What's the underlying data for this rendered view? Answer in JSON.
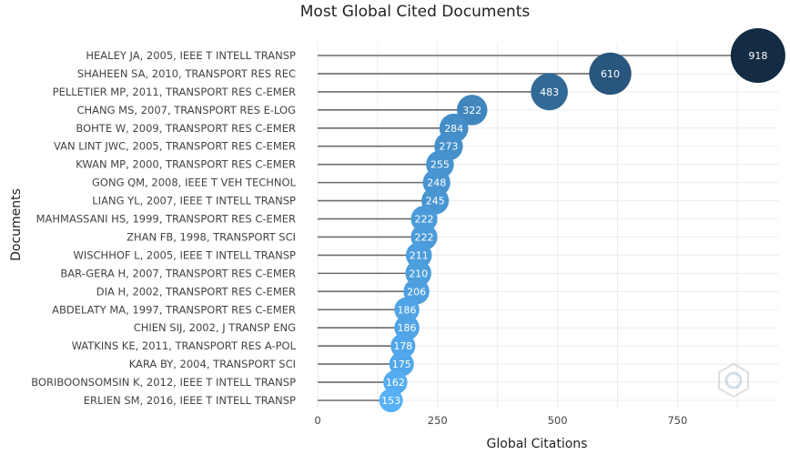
{
  "chart_data": {
    "type": "lollipop",
    "title": "Most Global Cited Documents",
    "xlabel": "Global Citations",
    "ylabel": "Documents",
    "xlim": [
      0,
      960
    ],
    "xticks": [
      0,
      250,
      500,
      750
    ],
    "grid": true,
    "categories": [
      "HEALEY JA, 2005, IEEE T INTELL TRANSP",
      "SHAHEEN SA, 2010, TRANSPORT RES REC",
      "PELLETIER MP, 2011, TRANSPORT RES C-EMER",
      "CHANG MS, 2007, TRANSPORT RES E-LOG",
      "BOHTE W, 2009, TRANSPORT RES C-EMER",
      "VAN LINT JWC, 2005, TRANSPORT RES C-EMER",
      "KWAN MP, 2000, TRANSPORT RES C-EMER",
      "GONG QM, 2008, IEEE T VEH TECHNOL",
      "LIANG YL, 2007, IEEE T INTELL TRANSP",
      "MAHMASSANI HS, 1999, TRANSPORT RES C-EMER",
      "ZHAN FB, 1998, TRANSPORT SCI",
      "WISCHHOF L, 2005, IEEE T INTELL TRANSP",
      "BAR-GERA H, 2007, TRANSPORT RES C-EMER",
      "DIA H, 2002, TRANSPORT RES C-EMER",
      "ABDELATY MA, 1997, TRANSPORT RES C-EMER",
      "CHIEN SIJ, 2002, J TRANSP ENG",
      "WATKINS KE, 2011, TRANSPORT RES A-POL",
      "KARA BY, 2004, TRANSPORT SCI",
      "BORIBOONSOMSIN K, 2012, IEEE T INTELL TRANSP",
      "ERLIEN SM, 2016, IEEE T INTELL TRANSP"
    ],
    "values": [
      918,
      610,
      483,
      322,
      284,
      273,
      255,
      248,
      245,
      222,
      222,
      211,
      210,
      206,
      186,
      186,
      178,
      175,
      162,
      153
    ],
    "colors": {
      "high": "#132b43",
      "low": "#56b1f7",
      "stem": "#6b6b6b",
      "grid": "#ebebeb"
    }
  }
}
